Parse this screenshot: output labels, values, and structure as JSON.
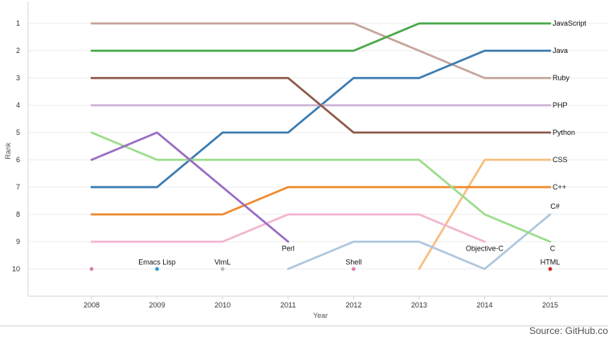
{
  "chart_data": {
    "type": "line",
    "title": "",
    "xlabel": "Year",
    "ylabel": "Rank",
    "x": [
      "2008",
      "2009",
      "2010",
      "2011",
      "2012",
      "2013",
      "2014",
      "2015"
    ],
    "y_ticks": [
      1,
      2,
      3,
      4,
      5,
      6,
      7,
      8,
      9,
      10
    ],
    "ylim": [
      0.2,
      11
    ],
    "y_reversed": true,
    "grid": "horizontal",
    "legend": "none",
    "series": [
      {
        "name": "JavaScript",
        "color": "#c5a49c",
        "values": [
          1,
          1,
          1,
          1,
          1,
          2,
          3,
          3
        ],
        "label_text": "JavaScript",
        "label_x": "2015",
        "label_y": 1
      },
      {
        "name": "Java",
        "color": "#3b7bb0",
        "values": [
          7,
          7,
          5,
          5,
          3,
          3,
          2,
          2
        ],
        "label_text": "Java",
        "label_x": "2015",
        "label_y": 2
      },
      {
        "name": "Ruby",
        "color": "#4aa84a",
        "values": [
          2,
          2,
          2,
          2,
          2,
          1,
          1,
          1
        ],
        "label_text": "Ruby",
        "label_x": "2015",
        "label_y": 3
      },
      {
        "name": "PHP",
        "color": "#c9b3d6",
        "values": [
          4,
          4,
          4,
          4,
          4,
          4,
          4,
          4
        ],
        "label_text": "PHP",
        "label_x": "2015",
        "label_y": 4
      },
      {
        "name": "Python",
        "color": "#8c5a4a",
        "values": [
          3,
          3,
          3,
          3,
          5,
          5,
          5,
          5
        ],
        "label_text": "Python",
        "label_x": "2015",
        "label_y": 5
      },
      {
        "name": "CSS",
        "color": "#f7bd7e",
        "values": [
          null,
          null,
          null,
          null,
          null,
          10,
          6,
          6
        ],
        "label_text": "CSS",
        "label_x": "2015",
        "label_y": 6
      },
      {
        "name": "C++",
        "color": "#f08a2c",
        "values": [
          8,
          8,
          8,
          7,
          7,
          7,
          7,
          7
        ],
        "label_text": "C++",
        "label_x": "2015",
        "label_y": 7
      },
      {
        "name": "C#",
        "color": "#aec6de",
        "values": [
          null,
          null,
          null,
          10,
          9,
          9,
          10,
          8
        ],
        "label_text": "C#",
        "label_x": "2015",
        "label_y": 7.7
      },
      {
        "name": "C",
        "color": "#9bdc8c",
        "values": [
          5,
          6,
          6,
          6,
          6,
          6,
          8,
          9
        ],
        "label_text": "C",
        "label_x": "2015",
        "label_y": 9.25
      },
      {
        "name": "Objective-C",
        "color": "#f3b5cf",
        "values": [
          9,
          9,
          9,
          8,
          8,
          8,
          9,
          null
        ],
        "label_text": "Objective-C",
        "label_x": "2014",
        "label_y": 9.25
      },
      {
        "name": "Perl",
        "color": "#9a6cc4",
        "values": [
          6,
          5,
          7,
          9,
          null,
          null,
          null,
          null
        ],
        "label_text": "Perl",
        "label_x": "2011",
        "label_y": 9.25
      },
      {
        "name": "HTML",
        "color": "#cc2a2a",
        "values": [
          null,
          null,
          null,
          null,
          null,
          null,
          null,
          10
        ],
        "label_text": "HTML",
        "label_x": "2015",
        "label_y": 9.75
      },
      {
        "name": "Shell",
        "color": "#e07fb0",
        "values": [
          10,
          null,
          null,
          null,
          10,
          null,
          null,
          null
        ],
        "label_text": "Shell",
        "label_x": "2012",
        "label_y": 9.75
      },
      {
        "name": "Emacs Lisp",
        "color": "#2b9bd6",
        "values": [
          null,
          10,
          null,
          null,
          null,
          null,
          null,
          null
        ],
        "label_text": "Emacs Lisp",
        "label_x": "2009",
        "label_y": 9.75
      },
      {
        "name": "VimL",
        "color": "#bdbdbd",
        "values": [
          null,
          null,
          10,
          null,
          null,
          null,
          null,
          null
        ],
        "label_text": "VimL",
        "label_x": "2010",
        "label_y": 9.75
      }
    ]
  },
  "source_text": "Source: GitHub.co"
}
